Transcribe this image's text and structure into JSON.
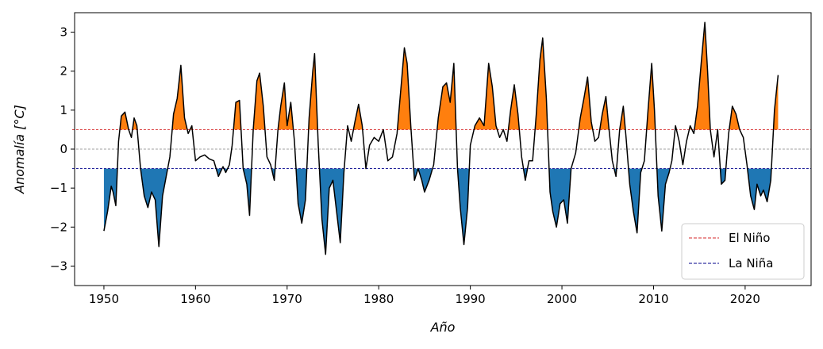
{
  "chart_data": {
    "type": "area",
    "title": "",
    "xlabel": "Año",
    "ylabel": "Anomalía [°C]",
    "xlim": [
      1946.8,
      2027.2
    ],
    "ylim": [
      -3.5,
      3.5
    ],
    "xticks": [
      1950,
      1960,
      1970,
      1980,
      1990,
      2000,
      2010,
      2020
    ],
    "yticks": [
      -3,
      -2,
      -1,
      0,
      1,
      2,
      3
    ],
    "thresholds": {
      "el_nino": 0.5,
      "la_nina": -0.5,
      "zero": 0
    },
    "legend": {
      "position": "lower-right",
      "entries": [
        {
          "label": "El Niño",
          "color": "#d62728"
        },
        {
          "label": "La Niña",
          "color": "#00008b"
        }
      ]
    },
    "colors": {
      "warm_fill": "#ff7f0e",
      "cold_fill": "#1f77b4",
      "line": "#000000",
      "zero": "#808080"
    },
    "series": [
      {
        "name": "Anomalía",
        "x": [
          1950.0,
          1950.4,
          1950.8,
          1951.0,
          1951.3,
          1951.6,
          1951.9,
          1952.3,
          1952.7,
          1953.0,
          1953.3,
          1953.6,
          1954.0,
          1954.4,
          1954.8,
          1955.2,
          1955.6,
          1956.0,
          1956.4,
          1956.8,
          1957.2,
          1957.6,
          1958.0,
          1958.4,
          1958.8,
          1959.2,
          1959.6,
          1960.0,
          1960.5,
          1961.0,
          1961.5,
          1962.0,
          1962.5,
          1963.0,
          1963.3,
          1963.7,
          1964.0,
          1964.4,
          1964.8,
          1965.2,
          1965.6,
          1965.9,
          1966.3,
          1966.7,
          1967.0,
          1967.4,
          1967.8,
          1968.2,
          1968.6,
          1969.0,
          1969.3,
          1969.7,
          1970.0,
          1970.4,
          1970.8,
          1971.2,
          1971.6,
          1972.0,
          1972.4,
          1972.8,
          1973.0,
          1973.4,
          1973.8,
          1974.2,
          1974.6,
          1975.0,
          1975.4,
          1975.8,
          1976.2,
          1976.6,
          1977.0,
          1977.4,
          1977.8,
          1978.2,
          1978.6,
          1979.0,
          1979.5,
          1980.0,
          1980.5,
          1981.0,
          1981.5,
          1982.0,
          1982.4,
          1982.8,
          1983.1,
          1983.5,
          1983.9,
          1984.3,
          1984.7,
          1985.0,
          1985.5,
          1986.0,
          1986.5,
          1987.0,
          1987.4,
          1987.8,
          1988.2,
          1988.6,
          1988.9,
          1989.3,
          1989.7,
          1990.0,
          1990.5,
          1991.0,
          1991.5,
          1992.0,
          1992.4,
          1992.8,
          1993.2,
          1993.6,
          1994.0,
          1994.4,
          1994.8,
          1995.2,
          1995.6,
          1996.0,
          1996.4,
          1996.8,
          1997.2,
          1997.6,
          1997.9,
          1998.3,
          1998.7,
          1999.0,
          1999.4,
          1999.8,
          2000.2,
          2000.6,
          2001.0,
          2001.5,
          2002.0,
          2002.4,
          2002.8,
          2003.2,
          2003.6,
          2004.0,
          2004.4,
          2004.8,
          2005.1,
          2005.5,
          2005.9,
          2006.3,
          2006.7,
          2007.0,
          2007.4,
          2007.8,
          2008.2,
          2008.6,
          2009.0,
          2009.4,
          2009.8,
          2010.1,
          2010.5,
          2010.9,
          2011.3,
          2011.7,
          2012.0,
          2012.4,
          2012.8,
          2013.2,
          2013.6,
          2014.0,
          2014.4,
          2014.8,
          2015.2,
          2015.6,
          2015.9,
          2016.2,
          2016.6,
          2017.0,
          2017.4,
          2017.8,
          2018.2,
          2018.6,
          2019.0,
          2019.4,
          2019.8,
          2020.2,
          2020.6,
          2021.0,
          2021.3,
          2021.7,
          2022.0,
          2022.4,
          2022.8,
          2023.2,
          2023.6
        ],
        "y": [
          -2.1,
          -1.6,
          -0.95,
          -1.1,
          -1.45,
          0.2,
          0.85,
          0.95,
          0.5,
          0.3,
          0.8,
          0.6,
          -0.5,
          -1.2,
          -1.5,
          -1.1,
          -1.3,
          -2.5,
          -1.2,
          -0.7,
          -0.2,
          0.9,
          1.3,
          2.15,
          0.8,
          0.4,
          0.6,
          -0.3,
          -0.2,
          -0.15,
          -0.25,
          -0.3,
          -0.7,
          -0.45,
          -0.6,
          -0.4,
          0.1,
          1.2,
          1.25,
          -0.5,
          -0.9,
          -1.7,
          0.5,
          1.75,
          1.95,
          1.1,
          -0.2,
          -0.4,
          -0.8,
          0.5,
          1.1,
          1.7,
          0.6,
          1.2,
          0.2,
          -1.4,
          -1.9,
          -1.3,
          0.8,
          2.0,
          2.45,
          0.1,
          -1.8,
          -2.7,
          -1.0,
          -0.8,
          -1.6,
          -2.4,
          -0.6,
          0.6,
          0.2,
          0.7,
          1.15,
          0.6,
          -0.5,
          0.1,
          0.3,
          0.2,
          0.5,
          -0.3,
          -0.2,
          0.4,
          1.5,
          2.6,
          2.2,
          0.6,
          -0.8,
          -0.5,
          -0.8,
          -1.1,
          -0.8,
          -0.4,
          0.8,
          1.6,
          1.7,
          1.2,
          2.2,
          -0.5,
          -1.5,
          -2.45,
          -1.5,
          0.1,
          0.6,
          0.8,
          0.6,
          2.2,
          1.6,
          0.6,
          0.3,
          0.5,
          0.2,
          1.0,
          1.65,
          0.9,
          -0.2,
          -0.8,
          -0.3,
          -0.3,
          0.9,
          2.3,
          2.85,
          1.3,
          -1.1,
          -1.6,
          -2.0,
          -1.4,
          -1.3,
          -1.9,
          -0.5,
          -0.1,
          0.8,
          1.3,
          1.85,
          0.7,
          0.2,
          0.3,
          0.9,
          1.35,
          0.6,
          -0.3,
          -0.7,
          0.5,
          1.1,
          0.3,
          -0.9,
          -1.6,
          -2.15,
          -0.6,
          -0.3,
          1.0,
          2.2,
          1.0,
          -1.2,
          -2.1,
          -0.9,
          -0.6,
          -0.3,
          0.6,
          0.2,
          -0.4,
          0.2,
          0.6,
          0.4,
          1.1,
          2.2,
          3.25,
          2.0,
          0.5,
          -0.2,
          0.5,
          -0.9,
          -0.8,
          0.4,
          1.1,
          0.9,
          0.5,
          0.3,
          -0.4,
          -1.2,
          -1.55,
          -0.9,
          -1.2,
          -1.05,
          -1.35,
          -0.8,
          1.0,
          1.9
        ]
      }
    ]
  }
}
